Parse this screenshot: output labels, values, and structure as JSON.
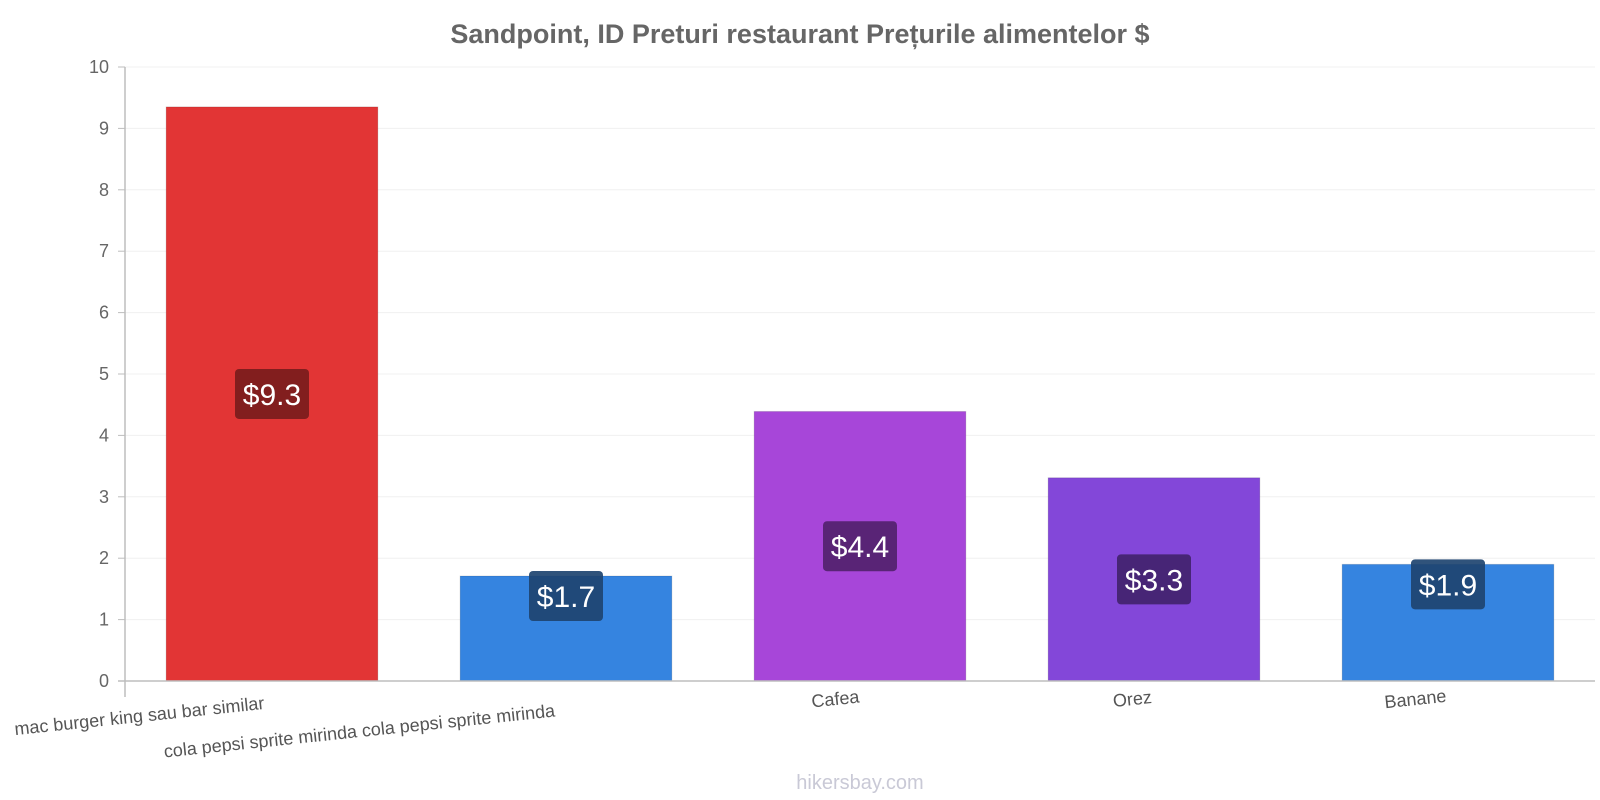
{
  "chart_data": {
    "type": "bar",
    "title": "Sandpoint, ID Preturi restaurant Prețurile alimentelor $",
    "categories": [
      "mac burger king sau bar similar",
      "cola pepsi sprite mirinda cola pepsi sprite mirinda",
      "Cafea",
      "Orez",
      "Banane"
    ],
    "values": [
      9.35,
      1.71,
      4.39,
      3.31,
      1.9
    ],
    "value_labels": [
      "$9.3",
      "$1.7",
      "$4.4",
      "$3.3",
      "$1.9"
    ],
    "bar_colors": [
      "#e23535",
      "#3584e0",
      "#a746d9",
      "#8347d9",
      "#3584e0"
    ],
    "label_bg_colors": [
      "#7a1c1c",
      "#1e4470",
      "#53226e",
      "#42236e",
      "#1e4470"
    ],
    "ylim": [
      0,
      10
    ],
    "yticks": [
      "0",
      "1",
      "2",
      "3",
      "4",
      "5",
      "6",
      "7",
      "8",
      "9",
      "10"
    ],
    "xlabel": "",
    "ylabel": "",
    "grid": true,
    "legend": "none"
  },
  "watermark": "hikersbay.com"
}
